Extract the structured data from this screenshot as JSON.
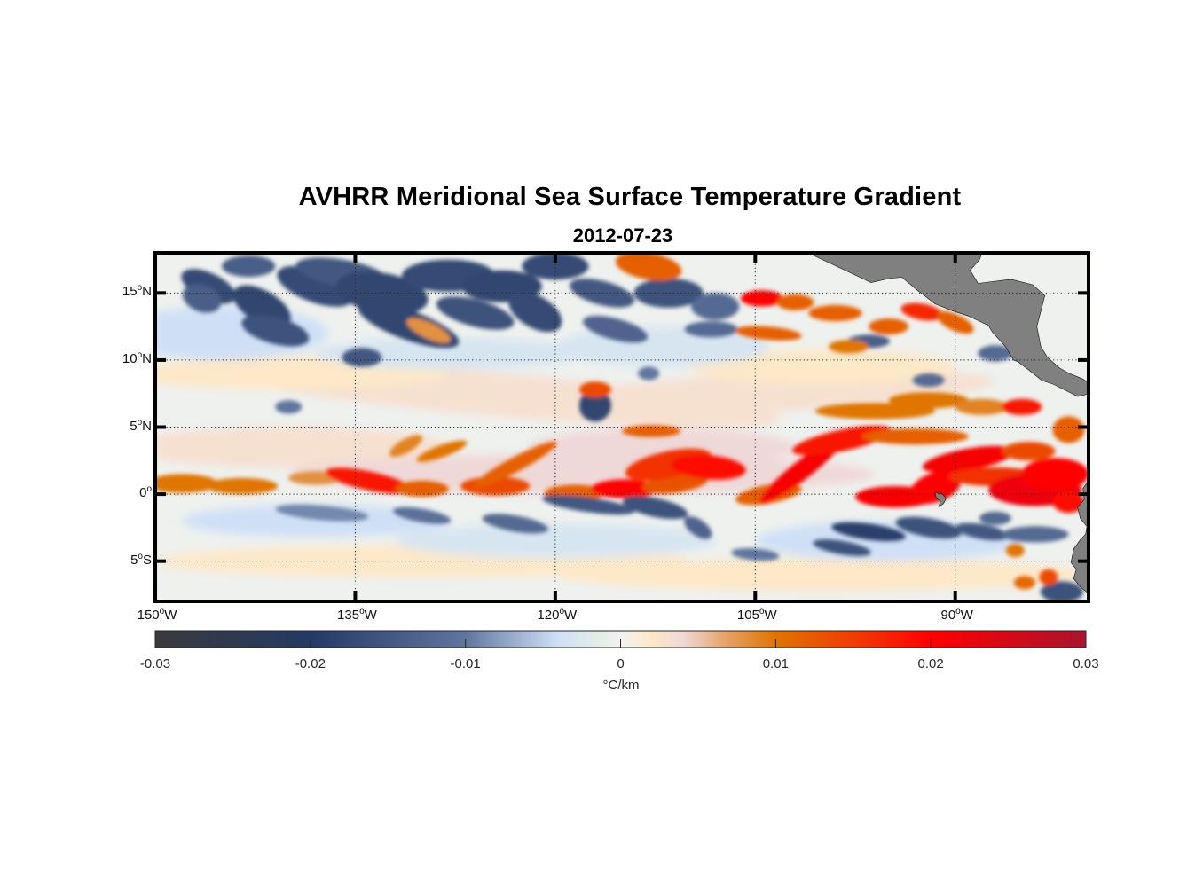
{
  "chart_data": {
    "type": "heatmap",
    "title": "AVHRR Meridional Sea Surface Temperature Gradient",
    "subtitle": "2012-07-23",
    "variable": "meridional SST gradient",
    "units": "°C/km",
    "lon_range": [
      -150,
      -80
    ],
    "lat_range": [
      -8,
      18
    ],
    "color_range": [
      -0.03,
      0.03
    ],
    "x_ticks": [
      {
        "deg": "150",
        "hemi": "W",
        "value": -150
      },
      {
        "deg": "135",
        "hemi": "W",
        "value": -135
      },
      {
        "deg": "120",
        "hemi": "W",
        "value": -120
      },
      {
        "deg": "105",
        "hemi": "W",
        "value": -105
      },
      {
        "deg": "90",
        "hemi": "W",
        "value": -90
      }
    ],
    "y_ticks": [
      {
        "deg": "15",
        "hemi": "N",
        "value": 15
      },
      {
        "deg": "10",
        "hemi": "N",
        "value": 10
      },
      {
        "deg": "5",
        "hemi": "N",
        "value": 5
      },
      {
        "deg": "0",
        "hemi": "",
        "value": 0
      },
      {
        "deg": "5",
        "hemi": "S",
        "value": -5
      }
    ],
    "colorbar": {
      "ticks": [
        {
          "label": "-0.03",
          "value": -0.03
        },
        {
          "label": "-0.02",
          "value": -0.02
        },
        {
          "label": "-0.01",
          "value": -0.01
        },
        {
          "label": "0",
          "value": 0
        },
        {
          "label": "0.01",
          "value": 0.01
        },
        {
          "label": "0.02",
          "value": 0.02
        },
        {
          "label": "0.03",
          "value": 0.03
        }
      ],
      "label": "°C/km",
      "stops": [
        {
          "value": -0.03,
          "color": "#3a3a3c"
        },
        {
          "value": -0.02,
          "color": "#243a64"
        },
        {
          "value": -0.01,
          "color": "#61769e"
        },
        {
          "value": -0.004,
          "color": "#cfe0f6"
        },
        {
          "value": -0.001,
          "color": "#e6efe6"
        },
        {
          "value": 0.0,
          "color": "#f2f2f2"
        },
        {
          "value": 0.002,
          "color": "#fde8c8"
        },
        {
          "value": 0.004,
          "color": "#efd8d8"
        },
        {
          "value": 0.007,
          "color": "#e3a060"
        },
        {
          "value": 0.01,
          "color": "#e07400"
        },
        {
          "value": 0.015,
          "color": "#ef3d05"
        },
        {
          "value": 0.02,
          "color": "#ff0000"
        },
        {
          "value": 0.03,
          "color": "#a8142f"
        }
      ]
    },
    "land_color": "#808080",
    "grid": "dotted",
    "colorbar_position": "bottom"
  }
}
